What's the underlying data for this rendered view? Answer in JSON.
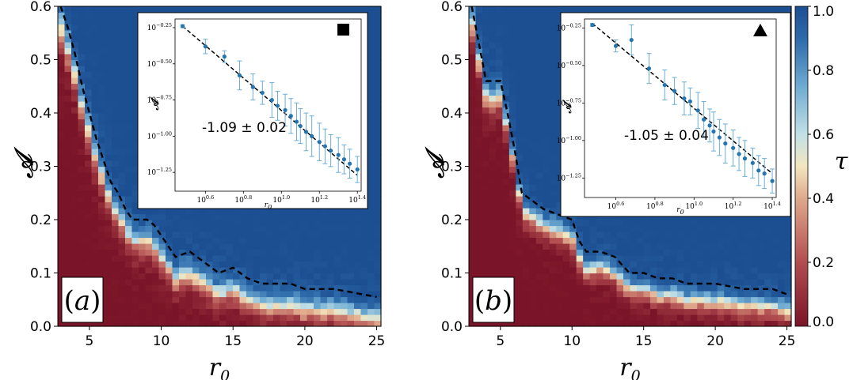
{
  "colors": {
    "low": "#7a1428",
    "mid": "#f2e6bf",
    "high": "#1c4f92",
    "fit": "#000000",
    "points": "#2475b0",
    "errorbars": "#6aaed6"
  },
  "colormap_stops": [
    {
      "t": 0.0,
      "color": "#7a1428"
    },
    {
      "t": 0.2,
      "color": "#b14d50"
    },
    {
      "t": 0.4,
      "color": "#dfa98b"
    },
    {
      "t": 0.5,
      "color": "#f2e6bf"
    },
    {
      "t": 0.6,
      "color": "#c2e0e6"
    },
    {
      "t": 0.75,
      "color": "#6eabd2"
    },
    {
      "t": 0.9,
      "color": "#2d6aaa"
    },
    {
      "t": 1.0,
      "color": "#1c4f92"
    }
  ],
  "colorbar": {
    "label": "τ",
    "range": [
      0.0,
      1.0
    ],
    "ticks": [
      "0.0",
      "0.2",
      "0.4",
      "0.6",
      "0.8",
      "1.0"
    ]
  },
  "chart_data": [
    {
      "type": "heatmap",
      "panel_label": "a",
      "xlabel": "r",
      "xlabel_sub": "0",
      "ylabel": "𝒜",
      "xlim": [
        2.8,
        25.3
      ],
      "ylim": [
        0.0,
        0.6
      ],
      "xticks": [
        "5",
        "10",
        "15",
        "20",
        "25"
      ],
      "yticks": [
        "0.0",
        "0.1",
        "0.2",
        "0.3",
        "0.4",
        "0.5",
        "0.6"
      ],
      "boundary_width": 0.075,
      "boundary_curve": [
        [
          3.0,
          0.6
        ],
        [
          3.5,
          0.56
        ],
        [
          4.0,
          0.51
        ],
        [
          4.5,
          0.45
        ],
        [
          5.0,
          0.4
        ],
        [
          5.5,
          0.35
        ],
        [
          6.0,
          0.31
        ],
        [
          6.5,
          0.27
        ],
        [
          7.0,
          0.25
        ],
        [
          7.5,
          0.22
        ],
        [
          8.0,
          0.2
        ],
        [
          9.0,
          0.2
        ],
        [
          9.5,
          0.19
        ],
        [
          10.0,
          0.17
        ],
        [
          11.0,
          0.13
        ],
        [
          12.0,
          0.14
        ],
        [
          13.0,
          0.12
        ],
        [
          14.0,
          0.1
        ],
        [
          15.0,
          0.11
        ],
        [
          16.0,
          0.09
        ],
        [
          17.0,
          0.08
        ],
        [
          18.0,
          0.08
        ],
        [
          19.0,
          0.08
        ],
        [
          20.0,
          0.07
        ],
        [
          21.0,
          0.07
        ],
        [
          22.0,
          0.07
        ],
        [
          23.0,
          0.065
        ],
        [
          24.0,
          0.06
        ],
        [
          25.0,
          0.055
        ]
      ],
      "inset": {
        "marker": "square",
        "slope_label": "-1.09 ± 0.02",
        "xlabel": "r",
        "xlabel_sub": "0",
        "ylabel": "𝒜",
        "xlim_log10": [
          0.44,
          1.42
        ],
        "ylim_log10": [
          -1.38,
          -0.19
        ],
        "xticks": [
          {
            "base": "10",
            "exp": "0.6"
          },
          {
            "base": "10",
            "exp": "0.8"
          },
          {
            "base": "10",
            "exp": "1.0"
          },
          {
            "base": "10",
            "exp": "1.2"
          },
          {
            "base": "10",
            "exp": "1.4"
          }
        ],
        "yticks": [
          {
            "base": "10",
            "exp": "−0.25"
          },
          {
            "base": "10",
            "exp": "−0.50"
          },
          {
            "base": "10",
            "exp": "−0.75"
          },
          {
            "base": "10",
            "exp": "−1.00"
          },
          {
            "base": "10",
            "exp": "−1.25"
          }
        ],
        "fit_line": [
          [
            0.48,
            -0.24
          ],
          [
            1.4,
            -1.27
          ]
        ],
        "points": [
          [
            0.48,
            -0.24,
            0.01
          ],
          [
            0.6,
            -0.38,
            0.05
          ],
          [
            0.7,
            -0.45,
            0.04
          ],
          [
            0.78,
            -0.58,
            0.1
          ],
          [
            0.85,
            -0.66,
            0.09
          ],
          [
            0.9,
            -0.7,
            0.08
          ],
          [
            0.95,
            -0.75,
            0.12
          ],
          [
            0.98,
            -0.79,
            0.1
          ],
          [
            1.02,
            -0.82,
            0.11
          ],
          [
            1.05,
            -0.86,
            0.12
          ],
          [
            1.08,
            -0.9,
            0.13
          ],
          [
            1.1,
            -0.93,
            0.12
          ],
          [
            1.13,
            -0.97,
            0.13
          ],
          [
            1.16,
            -1.0,
            0.14
          ],
          [
            1.2,
            -1.04,
            0.13
          ],
          [
            1.23,
            -1.07,
            0.12
          ],
          [
            1.26,
            -1.1,
            0.11
          ],
          [
            1.3,
            -1.13,
            0.12
          ],
          [
            1.33,
            -1.16,
            0.1
          ],
          [
            1.36,
            -1.19,
            0.1
          ],
          [
            1.4,
            -1.23,
            0.09
          ]
        ]
      }
    },
    {
      "type": "heatmap",
      "panel_label": "b",
      "xlabel": "r",
      "xlabel_sub": "0",
      "ylabel": "𝒜",
      "xlim": [
        2.8,
        25.3
      ],
      "ylim": [
        0.0,
        0.6
      ],
      "xticks": [
        "5",
        "10",
        "15",
        "20",
        "25"
      ],
      "yticks": [
        "0.0",
        "0.1",
        "0.2",
        "0.3",
        "0.4",
        "0.5",
        "0.6"
      ],
      "boundary_width": 0.06,
      "boundary_curve": [
        [
          3.0,
          0.6
        ],
        [
          3.5,
          0.53
        ],
        [
          4.0,
          0.46
        ],
        [
          5.0,
          0.46
        ],
        [
          5.5,
          0.4
        ],
        [
          6.0,
          0.33
        ],
        [
          6.5,
          0.25
        ],
        [
          7.0,
          0.24
        ],
        [
          8.0,
          0.22
        ],
        [
          9.0,
          0.21
        ],
        [
          10.0,
          0.2
        ],
        [
          10.5,
          0.16
        ],
        [
          11.0,
          0.14
        ],
        [
          12.0,
          0.14
        ],
        [
          13.0,
          0.13
        ],
        [
          14.0,
          0.1
        ],
        [
          15.0,
          0.1
        ],
        [
          16.0,
          0.09
        ],
        [
          17.0,
          0.09
        ],
        [
          18.0,
          0.08
        ],
        [
          19.0,
          0.08
        ],
        [
          20.0,
          0.08
        ],
        [
          21.0,
          0.075
        ],
        [
          22.0,
          0.07
        ],
        [
          23.0,
          0.07
        ],
        [
          24.0,
          0.07
        ],
        [
          25.0,
          0.06
        ]
      ],
      "inset": {
        "marker": "triangle",
        "slope_label": "-1.05 ± 0.04",
        "xlabel": "r",
        "xlabel_sub": "0",
        "ylabel": "𝒜",
        "xlim_log10": [
          0.44,
          1.42
        ],
        "ylim_log10": [
          -1.38,
          -0.19
        ],
        "xticks": [
          {
            "base": "10",
            "exp": "0.6"
          },
          {
            "base": "10",
            "exp": "0.8"
          },
          {
            "base": "10",
            "exp": "1.0"
          },
          {
            "base": "10",
            "exp": "1.2"
          },
          {
            "base": "10",
            "exp": "1.4"
          }
        ],
        "yticks": [
          {
            "base": "10",
            "exp": "−0.25"
          },
          {
            "base": "10",
            "exp": "−0.50"
          },
          {
            "base": "10",
            "exp": "−0.75"
          },
          {
            "base": "10",
            "exp": "−1.00"
          },
          {
            "base": "10",
            "exp": "−1.25"
          }
        ],
        "fit_line": [
          [
            0.48,
            -0.22
          ],
          [
            1.4,
            -1.22
          ]
        ],
        "points": [
          [
            0.48,
            -0.23,
            0.01
          ],
          [
            0.6,
            -0.37,
            0.04
          ],
          [
            0.68,
            -0.33,
            0.1
          ],
          [
            0.77,
            -0.52,
            0.1
          ],
          [
            0.85,
            -0.63,
            0.1
          ],
          [
            0.9,
            -0.67,
            0.09
          ],
          [
            0.95,
            -0.72,
            0.11
          ],
          [
            0.98,
            -0.74,
            0.09
          ],
          [
            1.02,
            -0.8,
            0.12
          ],
          [
            1.05,
            -0.86,
            0.12
          ],
          [
            1.08,
            -0.9,
            0.11
          ],
          [
            1.1,
            -0.94,
            0.13
          ],
          [
            1.13,
            -0.98,
            0.12
          ],
          [
            1.16,
            -1.02,
            0.13
          ],
          [
            1.2,
            -1.05,
            0.12
          ],
          [
            1.23,
            -1.09,
            0.11
          ],
          [
            1.26,
            -1.12,
            0.12
          ],
          [
            1.3,
            -1.15,
            0.1
          ],
          [
            1.33,
            -1.2,
            0.1
          ],
          [
            1.36,
            -1.22,
            0.1
          ],
          [
            1.4,
            -1.27,
            0.08
          ]
        ]
      }
    }
  ]
}
